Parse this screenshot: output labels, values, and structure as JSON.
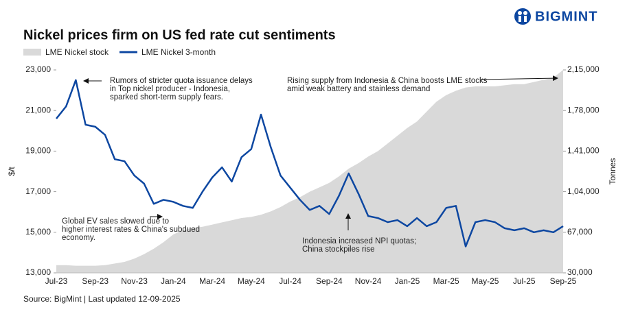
{
  "logo": "BIGMINT",
  "chart_data": {
    "type": "line",
    "title": "Nickel prices firm on US fed rate cut sentiments",
    "source": "Source: BigMint | Last updated 12-09-2025",
    "y_label": "$/t",
    "y2_label": "Tonnes",
    "categories": [
      "Jul-23",
      null,
      null,
      null,
      "Sep-23",
      null,
      null,
      null,
      "Nov-23",
      null,
      null,
      null,
      "Jan-24",
      null,
      null,
      null,
      "Mar-24",
      null,
      null,
      null,
      "May-24",
      null,
      null,
      null,
      "Jul-24",
      null,
      null,
      null,
      "Sep-24",
      null,
      null,
      null,
      "Nov-24",
      null,
      null,
      null,
      "Jan-25",
      null,
      null,
      null,
      "Mar-25",
      null,
      null,
      null,
      "May-25",
      null,
      null,
      null,
      "Jul-25",
      null,
      null,
      null,
      "Sep-25"
    ],
    "series": [
      {
        "name": "LME Nickel stock",
        "color": "#d9d9d9",
        "axis": "y2",
        "values": [
          37000,
          37000,
          36500,
          36500,
          36500,
          37000,
          38500,
          40000,
          43000,
          47000,
          52000,
          58000,
          65000,
          69000,
          71000,
          72000,
          74000,
          76000,
          78000,
          80000,
          81000,
          83000,
          86000,
          90000,
          95000,
          99000,
          104000,
          108000,
          112000,
          118000,
          125000,
          130000,
          136000,
          141000,
          148000,
          155000,
          162000,
          168000,
          177000,
          186000,
          192000,
          196000,
          199000,
          200000,
          200000,
          200000,
          201000,
          202000,
          202000,
          204000,
          206000,
          208000,
          215000
        ]
      },
      {
        "name": "LME Nickel 3-month",
        "color": "#0d47a1",
        "values": [
          20600,
          21200,
          22500,
          20300,
          20200,
          19800,
          18600,
          18500,
          17800,
          17400,
          16400,
          16600,
          16500,
          16300,
          16200,
          17000,
          17700,
          18200,
          17500,
          18700,
          19100,
          20800,
          19200,
          17800,
          17200,
          16600,
          16100,
          16300,
          15900,
          16800,
          17900,
          16900,
          15800,
          15700,
          15500,
          15600,
          15300,
          15700,
          15300,
          15500,
          16200,
          16300,
          14300,
          15500,
          15600,
          15500,
          15200,
          15100,
          15200,
          15000,
          15100,
          15000,
          15300
        ]
      }
    ],
    "ylim": [
      13000,
      23000
    ],
    "yticks": [
      {
        "value": 13000,
        "label": "13,000"
      },
      {
        "value": 15000,
        "label": "15,000"
      },
      {
        "value": 17000,
        "label": "17,000"
      },
      {
        "value": 19000,
        "label": "19,000"
      },
      {
        "value": 21000,
        "label": "21,000"
      },
      {
        "value": 23000,
        "label": "23,000"
      }
    ],
    "y2lim": [
      30000,
      215000
    ],
    "y2ticks": [
      {
        "value": 30000,
        "label": "30,000"
      },
      {
        "value": 67000,
        "label": "67,000"
      },
      {
        "value": 104000,
        "label": "1,04,000"
      },
      {
        "value": 141000,
        "label": "1,41,000"
      },
      {
        "value": 178000,
        "label": "1,78,000"
      },
      {
        "value": 215000,
        "label": "2,15,000"
      }
    ],
    "annotations": [
      {
        "text": [
          "Rumors of stricter quota issuance delays",
          "in Top nickel producer - Indonesia,",
          "sparked short-term supply fears."
        ]
      },
      {
        "text": [
          "Rising supply from Indonesia & China boosts LME stocks",
          "amid weak battery and stainless demand"
        ]
      },
      {
        "text": [
          "Global EV sales slowed due to",
          "higher interest rates & China's subdued",
          "economy."
        ]
      },
      {
        "text": [
          "Indonesia increased NPI quotas;",
          "China stockpiles rise"
        ]
      }
    ]
  }
}
